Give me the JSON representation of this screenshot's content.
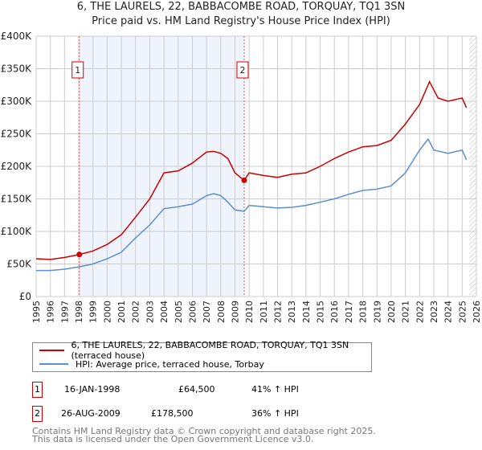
{
  "title": "6, THE LAURELS, 22, BABBACOMBE ROAD, TORQUAY, TQ1 3SN",
  "subtitle": "Price paid vs. HM Land Registry's House Price Index (HPI)",
  "colors": {
    "property": "#cc0000",
    "hpi": "#5b8fd0",
    "shade": "#eef3fc",
    "grid": "#cccccc"
  },
  "chart_data": {
    "type": "line",
    "xlim": [
      1995,
      2026
    ],
    "ylim": [
      0,
      400000
    ],
    "yticks": [
      0,
      50000,
      100000,
      150000,
      200000,
      250000,
      300000,
      350000,
      400000
    ],
    "ytick_labels": [
      "£0",
      "£50K",
      "£100K",
      "£150K",
      "£200K",
      "£250K",
      "£300K",
      "£350K",
      "£400K"
    ],
    "xticks": [
      1995,
      1996,
      1997,
      1998,
      1999,
      2000,
      2001,
      2002,
      2003,
      2004,
      2005,
      2006,
      2007,
      2008,
      2009,
      2010,
      2011,
      2012,
      2013,
      2014,
      2015,
      2016,
      2017,
      2018,
      2019,
      2020,
      2021,
      2022,
      2023,
      2024,
      2025,
      2026
    ],
    "grid": true,
    "shaded_range": [
      1998.04,
      2009.65
    ],
    "hatched_range": [
      2025.5,
      2026
    ],
    "series": [
      {
        "name": "6, THE LAURELS, 22, BABBACOMBE ROAD, TORQUAY, TQ1 3SN (terraced house)",
        "color": "#cc0000",
        "x": [
          1995,
          1996,
          1997,
          1998.04,
          1999,
          2000,
          2001,
          2002,
          2003,
          2004,
          2005,
          2006,
          2007,
          2007.5,
          2008,
          2008.5,
          2009,
          2009.65,
          2010,
          2011,
          2012,
          2013,
          2014,
          2015,
          2016,
          2017,
          2018,
          2019,
          2020,
          2021,
          2022,
          2022.7,
          2023.3,
          2024,
          2025,
          2025.3
        ],
        "y": [
          58000,
          57000,
          60000,
          64500,
          70000,
          80000,
          95000,
          122000,
          150000,
          190000,
          193000,
          205000,
          222000,
          223000,
          220000,
          212000,
          190000,
          178500,
          190000,
          186000,
          183000,
          188000,
          190000,
          200000,
          212000,
          222000,
          230000,
          232000,
          240000,
          265000,
          295000,
          330000,
          305000,
          300000,
          305000,
          290000
        ]
      },
      {
        "name": "HPI: Average price, terraced house, Torbay",
        "color": "#5b8fd0",
        "x": [
          1995,
          1996,
          1997,
          1998.04,
          1999,
          2000,
          2001,
          2002,
          2003,
          2004,
          2005,
          2006,
          2007,
          2007.5,
          2008,
          2008.5,
          2009,
          2009.65,
          2010,
          2011,
          2012,
          2013,
          2014,
          2015,
          2016,
          2017,
          2018,
          2019,
          2020,
          2021,
          2022,
          2022.6,
          2023,
          2024,
          2025,
          2025.3
        ],
        "y": [
          40000,
          40000,
          42000,
          45700,
          50000,
          58000,
          68000,
          90000,
          110000,
          135000,
          138000,
          142000,
          155000,
          158000,
          155000,
          145000,
          133000,
          131000,
          140000,
          138000,
          136000,
          137000,
          140000,
          145000,
          150000,
          157000,
          163000,
          165000,
          170000,
          190000,
          225000,
          242000,
          225000,
          220000,
          225000,
          210000
        ]
      }
    ],
    "annotations": [
      {
        "label": "1",
        "x": 1998.04,
        "y": 64500
      },
      {
        "label": "2",
        "x": 2009.65,
        "y": 178500
      }
    ]
  },
  "legend": {
    "property": "6, THE LAURELS, 22, BABBACOMBE ROAD, TORQUAY, TQ1 3SN (terraced house)",
    "hpi": "HPI: Average price, terraced house, Torbay"
  },
  "sales": [
    {
      "num": "1",
      "date": "16-JAN-1998",
      "price": "£64,500",
      "hpi": "41% ↑ HPI"
    },
    {
      "num": "2",
      "date": "26-AUG-2009",
      "price": "£178,500",
      "hpi": "36% ↑ HPI"
    }
  ],
  "footer": {
    "line1": "Contains HM Land Registry data © Crown copyright and database right 2025.",
    "line2": "This data is licensed under the Open Government Licence v3.0."
  }
}
